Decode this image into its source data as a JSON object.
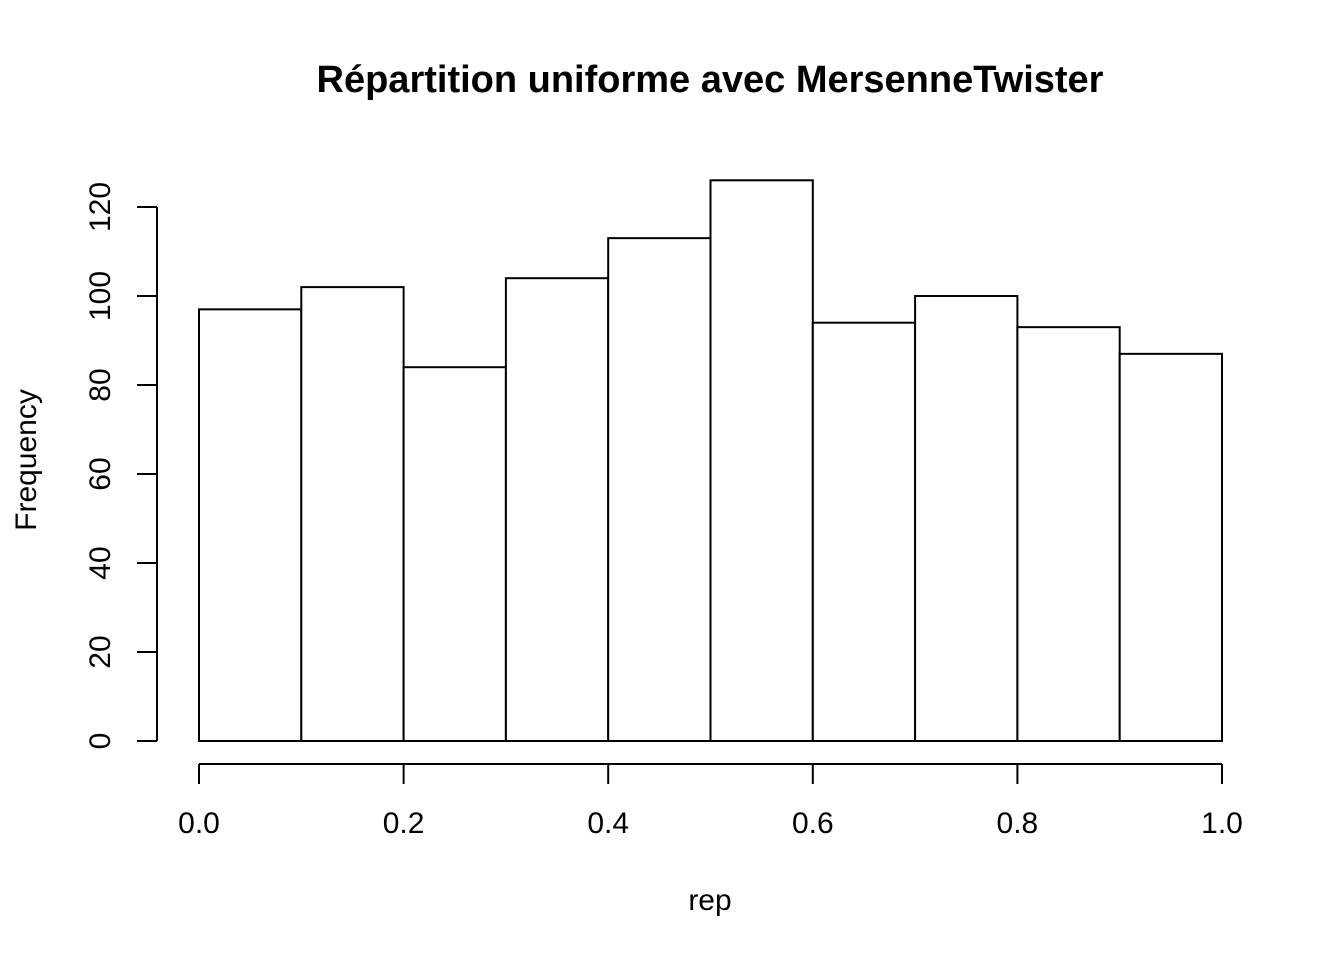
{
  "chart_data": {
    "type": "bar",
    "title": "Répartition uniforme avec MersenneTwister",
    "xlabel": "rep",
    "ylabel": "Frequency",
    "bins": [
      {
        "from": 0.0,
        "to": 0.1,
        "count": 97
      },
      {
        "from": 0.1,
        "to": 0.2,
        "count": 102
      },
      {
        "from": 0.2,
        "to": 0.3,
        "count": 84
      },
      {
        "from": 0.3,
        "to": 0.4,
        "count": 104
      },
      {
        "from": 0.4,
        "to": 0.5,
        "count": 113
      },
      {
        "from": 0.5,
        "to": 0.6,
        "count": 126
      },
      {
        "from": 0.6,
        "to": 0.7,
        "count": 94
      },
      {
        "from": 0.7,
        "to": 0.8,
        "count": 100
      },
      {
        "from": 0.8,
        "to": 0.9,
        "count": 93
      },
      {
        "from": 0.9,
        "to": 1.0,
        "count": 87
      }
    ],
    "xlim": [
      0.0,
      1.0
    ],
    "ylim": [
      0,
      120
    ],
    "x_ticks": [
      "0.0",
      "0.2",
      "0.4",
      "0.6",
      "0.8",
      "1.0"
    ],
    "y_ticks": [
      "0",
      "20",
      "40",
      "60",
      "80",
      "100",
      "120"
    ],
    "grid": false,
    "legend": "none",
    "colors": {
      "bar_fill": "#ffffff",
      "bar_stroke": "#000000"
    }
  }
}
